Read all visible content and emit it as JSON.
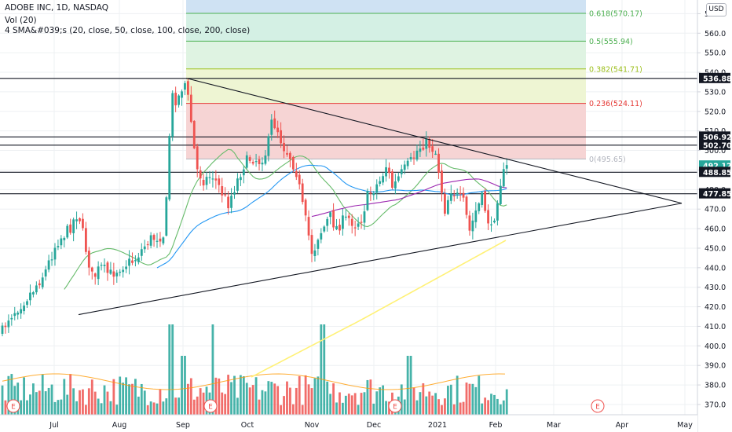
{
  "header": {
    "title": "ADOBE INC, 1D, NASDAQ",
    "vol_legend": "Vol (20)",
    "sma_legend": "4 SMA&#039;s (20, close, 50, close, 100, close, 200, close)",
    "currency": "USD"
  },
  "chart_data": {
    "type": "candlestick",
    "symbol": "ADOBE INC",
    "interval": "1D",
    "exchange": "NASDAQ",
    "x_ticks": [
      "Jul",
      "Aug",
      "Sep",
      "Oct",
      "Nov",
      "Dec",
      "2021",
      "Feb",
      "Mar",
      "Apr",
      "May"
    ],
    "y_ticks": [
      370,
      380,
      390,
      400,
      410,
      420,
      430,
      440,
      450,
      460,
      470,
      480,
      490,
      500,
      510,
      520,
      530,
      540,
      550,
      560,
      570
    ],
    "y_range": [
      365,
      575
    ],
    "price_labels": [
      {
        "value": "536.88",
        "color": "#131722"
      },
      {
        "value": "506.92",
        "color": "#131722"
      },
      {
        "value": "502.70",
        "color": "#131722"
      },
      {
        "value": "492.12",
        "color": "#26a69a"
      },
      {
        "value": "488.85",
        "color": "#131722"
      },
      {
        "value": "477.85",
        "color": "#131722"
      }
    ],
    "fib_levels": [
      {
        "label": "0.618(570.17)",
        "value": 570.17,
        "color": "#4caf50"
      },
      {
        "label": "0.5(555.94)",
        "value": 555.94,
        "color": "#4caf50"
      },
      {
        "label": "0.382(541.71)",
        "value": 541.71,
        "color": "#9cbf1a"
      },
      {
        "label": "0.236(524.11)",
        "value": 524.11,
        "color": "#e53935"
      },
      {
        "label": "0(495.65)",
        "value": 495.65,
        "color": "#b2b5be"
      }
    ],
    "horizontal_levels": [
      536.88,
      506.92,
      502.7,
      488.85,
      477.85
    ],
    "triangle": {
      "upper_line": [
        {
          "date": "2020-09-01",
          "price": 537
        },
        {
          "date": "2021-05-01",
          "price": 473
        }
      ],
      "lower_line": [
        {
          "date": "2020-07-10",
          "price": 416
        },
        {
          "date": "2021-05-01",
          "price": 473
        }
      ]
    },
    "event_markers": [
      "E",
      "E",
      "E",
      "E"
    ],
    "series": [
      {
        "name": "SMA 20",
        "color": "#4caf50"
      },
      {
        "name": "SMA 50",
        "color": "#2196f3"
      },
      {
        "name": "SMA 100",
        "color": "#9c27b0"
      },
      {
        "name": "SMA 200",
        "color": "#ffeb3b"
      }
    ],
    "last_close": 492.12,
    "colors": {
      "up": "#26a69a",
      "down": "#ef5350",
      "volume_up": "#26a69a",
      "volume_down": "#ef5350"
    }
  }
}
